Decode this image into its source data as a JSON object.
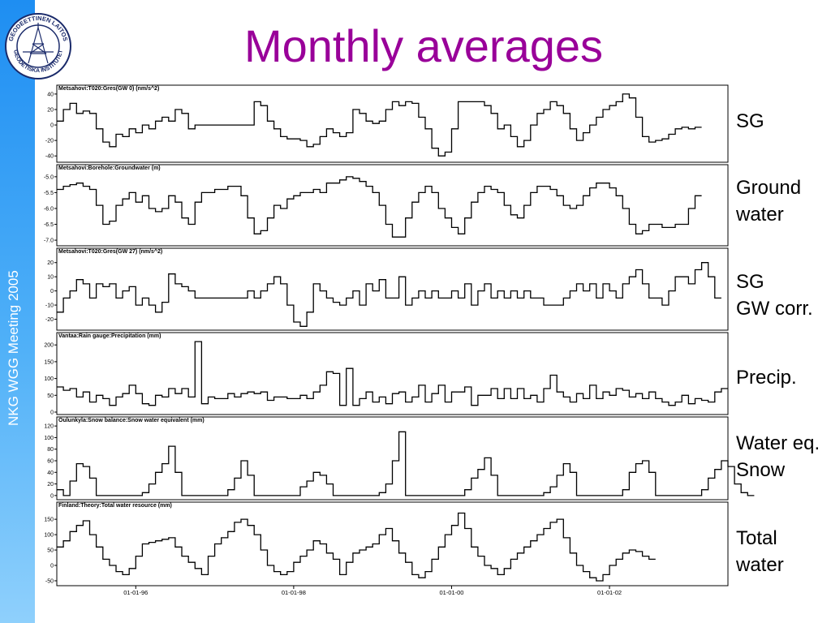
{
  "slide": {
    "title": "Monthly averages",
    "sidebar_text": "NKG WGG Meeting 2005",
    "logo": {
      "ring_top": "GEODEETTINEN LAITOS",
      "ring_bottom": "GEODETISKA INSTITUTET",
      "icon": "geodetic-institute-logo-icon"
    },
    "accent_color": "#990099",
    "sidebar_color": "#1e8ef2"
  },
  "labels": [
    {
      "line1": "SG",
      "line2": ""
    },
    {
      "line1": "Ground",
      "line2": "water"
    },
    {
      "line1": "SG",
      "line2": "GW corr."
    },
    {
      "line1": "Precip.",
      "line2": ""
    },
    {
      "line1": "Water eq.",
      "line2": "Snow"
    },
    {
      "line1": "Total",
      "line2": "water"
    }
  ],
  "x_axis": {
    "tick_labels": [
      "01-01-96",
      "01-01-98",
      "01-01-00",
      "01-01-02"
    ],
    "tick_months": [
      12,
      36,
      60,
      84
    ],
    "range_months": [
      0,
      102
    ]
  },
  "chart_data": [
    {
      "type": "line",
      "title": "Metsahovi:T020:Gres(GW 0) (nm/s^2)",
      "ylim": [
        -45,
        42
      ],
      "ticks": [
        40,
        20,
        0,
        -20,
        -40
      ],
      "tick_labels": [
        "40",
        "20",
        "0",
        "-20",
        "-40"
      ],
      "series": [
        {
          "values": [
            5,
            20,
            28,
            15,
            18,
            15,
            -5,
            -22,
            -28,
            -12,
            -15,
            -5,
            -10,
            0,
            -5,
            5,
            10,
            5,
            20,
            15,
            -5,
            0,
            0,
            0,
            0,
            0,
            0,
            0,
            0,
            0,
            30,
            25,
            5,
            -5,
            -15,
            -18,
            -18,
            -20,
            -28,
            -25,
            -15,
            -5,
            -10,
            -15,
            -10,
            20,
            15,
            5,
            2,
            5,
            20,
            30,
            25,
            30,
            28,
            10,
            -5,
            -30,
            -40,
            -35,
            -5,
            30,
            30,
            30,
            30,
            25,
            15,
            -5,
            0,
            -15,
            -28,
            -20,
            0,
            15,
            20,
            30,
            25,
            15,
            -5,
            -20,
            -10,
            0,
            10,
            20,
            25,
            30,
            40,
            35,
            10,
            -15,
            -22,
            -20,
            -18,
            -12,
            -5,
            -3,
            -5,
            -3
          ]
        }
      ]
    },
    {
      "type": "line",
      "title": "Metsahovi:Borehole:Groundwater (m)",
      "ylim": [
        -7.1,
        -4.85
      ],
      "ticks": [
        -5.0,
        -5.5,
        -6.0,
        -6.5,
        -7.0
      ],
      "tick_labels": [
        "-5.0",
        "-5.5",
        "-6.0",
        "-6.5",
        "-7.0"
      ],
      "series": [
        {
          "values": [
            -5.4,
            -5.3,
            -5.25,
            -5.2,
            -5.3,
            -5.4,
            -5.9,
            -6.5,
            -6.4,
            -5.9,
            -5.7,
            -5.5,
            -5.8,
            -5.6,
            -6.0,
            -6.1,
            -6.0,
            -5.6,
            -5.8,
            -6.3,
            -6.5,
            -5.8,
            -5.5,
            -5.5,
            -5.4,
            -5.4,
            -5.3,
            -5.3,
            -5.6,
            -6.3,
            -6.8,
            -6.7,
            -6.3,
            -5.9,
            -6.0,
            -5.7,
            -5.6,
            -5.5,
            -5.5,
            -5.4,
            -5.5,
            -5.2,
            -5.2,
            -5.1,
            -5.0,
            -5.05,
            -5.15,
            -5.3,
            -5.5,
            -5.9,
            -6.5,
            -6.9,
            -6.9,
            -6.3,
            -5.8,
            -5.5,
            -5.3,
            -5.5,
            -6.0,
            -6.3,
            -6.6,
            -6.8,
            -6.3,
            -5.8,
            -5.5,
            -5.3,
            -5.4,
            -5.5,
            -5.9,
            -6.2,
            -6.3,
            -5.9,
            -5.5,
            -5.3,
            -5.3,
            -5.4,
            -5.6,
            -5.9,
            -6.0,
            -5.9,
            -5.6,
            -5.35,
            -5.2,
            -5.2,
            -5.35,
            -5.6,
            -6.0,
            -6.5,
            -6.8,
            -6.7,
            -6.5,
            -6.5,
            -6.6,
            -6.6,
            -6.5,
            -6.5,
            -6.0,
            -5.6
          ]
        }
      ]
    },
    {
      "type": "line",
      "title": "Metsahovi:T020:Gres(GW 27) (nm/s^2)",
      "ylim": [
        -26,
        25
      ],
      "ticks": [
        20,
        10,
        0,
        -10,
        -20
      ],
      "tick_labels": [
        "20",
        "10",
        "0",
        "-10",
        "-20"
      ],
      "series": [
        {
          "values": [
            -15,
            -5,
            0,
            8,
            5,
            -5,
            5,
            3,
            5,
            -5,
            0,
            3,
            -10,
            -5,
            -10,
            -15,
            -8,
            12,
            5,
            3,
            0,
            -5,
            -5,
            -5,
            -5,
            -5,
            -5,
            -5,
            -5,
            0,
            -5,
            0,
            5,
            10,
            5,
            -10,
            -22,
            -25,
            -15,
            5,
            0,
            -5,
            -8,
            -10,
            -5,
            0,
            -10,
            5,
            0,
            8,
            -5,
            -5,
            10,
            -10,
            -5,
            0,
            -5,
            0,
            -5,
            -5,
            0,
            -5,
            5,
            -10,
            0,
            5,
            -5,
            0,
            -5,
            0,
            -5,
            0,
            -5,
            -5,
            -10,
            -10,
            -10,
            -5,
            0,
            5,
            0,
            5,
            -5,
            5,
            0,
            -5,
            5,
            10,
            15,
            5,
            -5,
            -5,
            -10,
            0,
            10,
            10,
            5,
            15,
            20,
            10,
            -5
          ]
        }
      ]
    },
    {
      "type": "line",
      "title": "Vantaa:Rain gauge:Precipitation (mm)",
      "ylim": [
        0,
        215
      ],
      "ticks": [
        200,
        150,
        100,
        50,
        0
      ],
      "tick_labels": [
        "200",
        "150",
        "100",
        "50",
        "0"
      ],
      "series": [
        {
          "values": [
            75,
            65,
            70,
            45,
            60,
            30,
            50,
            40,
            20,
            45,
            55,
            80,
            55,
            25,
            20,
            50,
            45,
            70,
            55,
            70,
            45,
            210,
            25,
            45,
            40,
            40,
            55,
            45,
            55,
            60,
            55,
            60,
            35,
            45,
            45,
            40,
            40,
            50,
            40,
            60,
            80,
            120,
            115,
            20,
            130,
            20,
            40,
            60,
            30,
            45,
            25,
            55,
            60,
            30,
            45,
            80,
            30,
            55,
            80,
            30,
            60,
            60,
            75,
            20,
            50,
            50,
            70,
            40,
            70,
            40,
            70,
            40,
            50,
            30,
            70,
            110,
            60,
            45,
            30,
            55,
            40,
            80,
            40,
            60,
            50,
            70,
            65,
            45,
            55,
            40,
            60,
            40,
            30,
            20,
            30,
            50,
            25,
            40,
            35,
            30,
            60,
            70
          ]
        }
      ]
    },
    {
      "type": "line",
      "title": "Oulunkyla:Snow balance:Snow water equivalent (mm)",
      "ylim": [
        -3,
        123
      ],
      "ticks": [
        120,
        100,
        80,
        60,
        40,
        20,
        0
      ],
      "tick_labels": [
        "120",
        "100",
        "80",
        "60",
        "40",
        "20",
        "0"
      ],
      "series": [
        {
          "values": [
            10,
            0,
            25,
            55,
            50,
            30,
            0,
            0,
            0,
            0,
            0,
            0,
            0,
            5,
            20,
            40,
            55,
            85,
            40,
            0,
            0,
            0,
            0,
            0,
            0,
            0,
            10,
            30,
            60,
            35,
            0,
            0,
            0,
            0,
            0,
            0,
            0,
            15,
            25,
            40,
            35,
            20,
            0,
            0,
            0,
            0,
            0,
            0,
            0,
            5,
            20,
            60,
            110,
            0,
            0,
            0,
            0,
            0,
            0,
            0,
            0,
            0,
            10,
            30,
            45,
            65,
            35,
            0,
            0,
            0,
            0,
            0,
            0,
            0,
            5,
            15,
            35,
            55,
            40,
            0,
            0,
            0,
            0,
            0,
            0,
            0,
            10,
            40,
            55,
            60,
            40,
            0,
            0,
            0,
            0,
            0,
            0,
            0,
            10,
            30,
            45,
            60,
            50,
            20,
            5,
            0
          ]
        }
      ]
    },
    {
      "type": "line",
      "title": "Finland:Theory:Total water resource (mm)",
      "ylim": [
        -58,
        182
      ],
      "ticks": [
        150,
        100,
        50,
        0,
        -50
      ],
      "tick_labels": [
        "150",
        "100",
        "50",
        "0",
        "-50"
      ],
      "series": [
        {
          "values": [
            60,
            80,
            110,
            130,
            145,
            100,
            60,
            20,
            0,
            -20,
            -30,
            -10,
            30,
            70,
            75,
            80,
            85,
            90,
            60,
            30,
            10,
            -10,
            -30,
            30,
            70,
            90,
            110,
            140,
            150,
            130,
            100,
            50,
            0,
            -20,
            -30,
            -20,
            10,
            30,
            50,
            80,
            70,
            40,
            20,
            -30,
            10,
            40,
            50,
            60,
            70,
            100,
            120,
            80,
            40,
            10,
            -30,
            -40,
            -20,
            20,
            60,
            100,
            130,
            170,
            120,
            60,
            30,
            0,
            -10,
            -30,
            -10,
            20,
            40,
            60,
            80,
            100,
            120,
            140,
            150,
            90,
            40,
            0,
            -20,
            -40,
            -50,
            -30,
            0,
            20,
            40,
            50,
            45,
            30,
            20
          ]
        }
      ]
    }
  ]
}
